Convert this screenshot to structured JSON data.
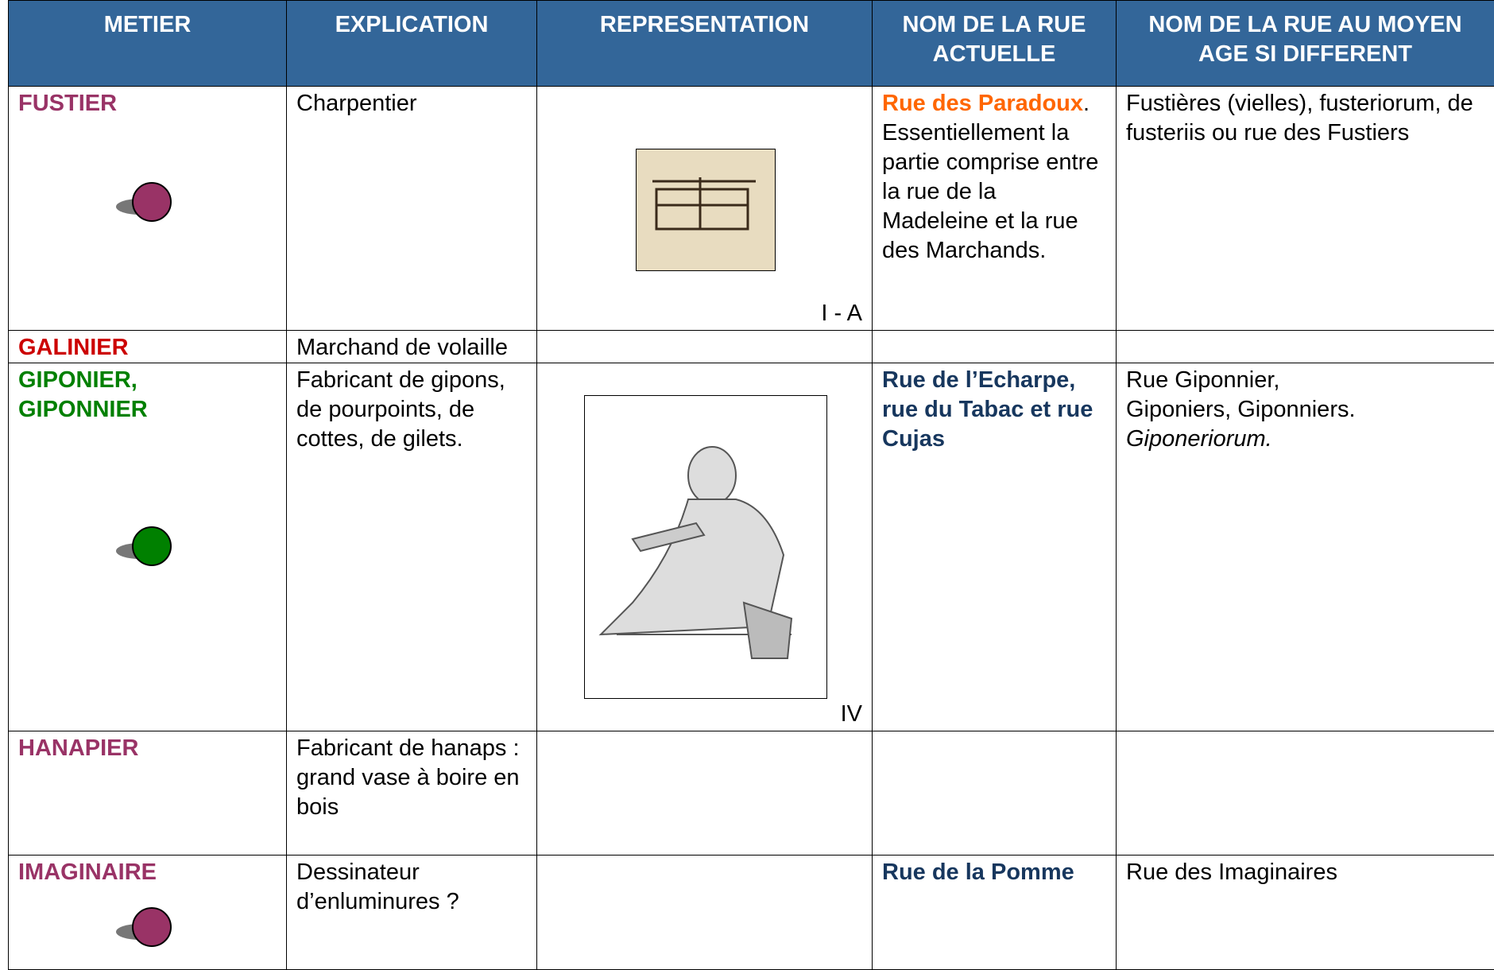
{
  "header": {
    "columns": [
      "METIER",
      "EXPLICATION",
      "REPRESENTATION",
      "NOM DE LA RUE ACTUELLE",
      "NOM DE LA RUE AU MOYEN AGE SI DIFFERENT"
    ]
  },
  "rows": [
    {
      "metier": "FUSTIER",
      "explication": "Charpentier",
      "representation_caption": "I - A",
      "rue_actuelle": {
        "name": "Rue des Paradoux",
        "rest": ". Essentiellement la partie comprise entre la rue de la Madeleine et la rue des Marchands."
      },
      "rue_moyen_age": {
        "text": "Fustières (vielles), fusteriorum, de fusteriis ou rue des Fustiers"
      }
    },
    {
      "metier": "GALINIER",
      "explication": "Marchand de volaille"
    },
    {
      "metier": "GIPONIER, GIPONNIER",
      "explication": "Fabricant de gipons, de pourpoints, de cottes, de gilets.",
      "representation_caption": "IV",
      "rue_actuelle": {
        "name": "Rue de l’Echarpe, rue du Tabac et rue Cujas"
      },
      "rue_moyen_age": {
        "text": "Rue Giponnier, Giponiers, Giponniers.",
        "latin": "Giponeriorum."
      }
    },
    {
      "metier": "HANAPIER",
      "explication": "Fabricant de hanaps : grand vase à boire en bois"
    },
    {
      "metier": "IMAGINAIRE",
      "explication": "Dessinateur d’enluminures ?",
      "rue_actuelle": {
        "name": "Rue de la Pomme"
      },
      "rue_moyen_age": {
        "text": "Rue des Imaginaires"
      }
    }
  ]
}
